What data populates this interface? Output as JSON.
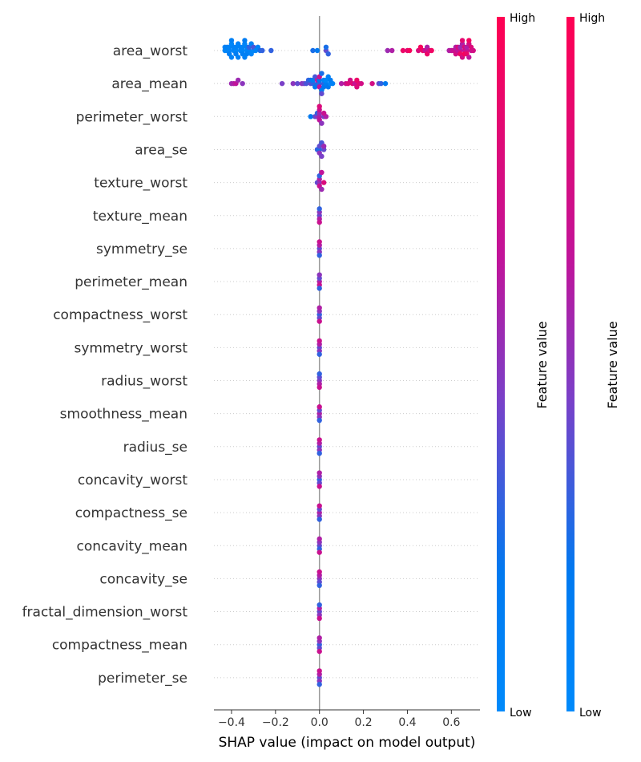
{
  "chart_data": {
    "type": "scatter",
    "subtype": "shap_beeswarm_summary",
    "title": "",
    "xlabel": "SHAP value (impact on model output)",
    "ylabel": "",
    "xlim": [
      -0.48,
      0.73
    ],
    "xticks": [
      -0.4,
      -0.2,
      0.0,
      0.2,
      0.4,
      0.6
    ],
    "xtick_labels": [
      "−0.4",
      "−0.2",
      "0.0",
      "0.2",
      "0.4",
      "0.6"
    ],
    "zero_line": 0.0,
    "features": [
      "area_worst",
      "area_mean",
      "perimeter_worst",
      "area_se",
      "texture_worst",
      "texture_mean",
      "symmetry_se",
      "perimeter_mean",
      "compactness_worst",
      "symmetry_worst",
      "radius_worst",
      "smoothness_mean",
      "radius_se",
      "concavity_worst",
      "compactness_se",
      "concavity_mean",
      "concavity_se",
      "fractal_dimension_worst",
      "compactness_mean",
      "perimeter_se"
    ],
    "colormap": {
      "low": "#008afb",
      "high": "#ff0052"
    },
    "colorbars": [
      {
        "title": "Feature value",
        "high_label": "High",
        "low_label": "Low"
      },
      {
        "title": "Feature value",
        "high_label": "High",
        "low_label": "Low"
      }
    ],
    "points": [
      [
        [
          -0.43,
          0.05
        ],
        [
          -0.43,
          0.1
        ],
        [
          -0.42,
          0.08
        ],
        [
          -0.42,
          0.12
        ],
        [
          -0.41,
          0.06
        ],
        [
          -0.41,
          0.1
        ],
        [
          -0.41,
          0.15
        ],
        [
          -0.4,
          0.05
        ],
        [
          -0.4,
          0.08
        ],
        [
          -0.4,
          0.12
        ],
        [
          -0.39,
          0.06
        ],
        [
          -0.39,
          0.1
        ],
        [
          -0.38,
          0.05
        ],
        [
          -0.38,
          0.09
        ],
        [
          -0.38,
          0.14
        ],
        [
          -0.37,
          0.08
        ],
        [
          -0.37,
          0.12
        ],
        [
          -0.36,
          0.06
        ],
        [
          -0.36,
          0.1
        ],
        [
          -0.35,
          0.05
        ],
        [
          -0.35,
          0.08
        ],
        [
          -0.35,
          0.12
        ],
        [
          -0.34,
          0.06
        ],
        [
          -0.34,
          0.1
        ],
        [
          -0.34,
          0.15
        ],
        [
          -0.33,
          0.05
        ],
        [
          -0.33,
          0.09
        ],
        [
          -0.33,
          0.12
        ],
        [
          -0.32,
          0.08
        ],
        [
          -0.32,
          0.3
        ],
        [
          -0.31,
          0.06
        ],
        [
          -0.31,
          0.1
        ],
        [
          -0.3,
          0.05
        ],
        [
          -0.3,
          0.35
        ],
        [
          -0.29,
          0.08
        ],
        [
          -0.28,
          0.1
        ],
        [
          -0.27,
          0.25
        ],
        [
          -0.26,
          0.3
        ],
        [
          -0.22,
          0.3
        ],
        [
          -0.03,
          0.25
        ],
        [
          -0.01,
          0.2
        ],
        [
          0.03,
          0.4
        ],
        [
          0.03,
          0.25
        ],
        [
          0.04,
          0.3
        ],
        [
          0.31,
          0.55
        ],
        [
          0.33,
          0.6
        ],
        [
          0.38,
          0.9
        ],
        [
          0.4,
          0.85
        ],
        [
          0.41,
          0.95
        ],
        [
          0.45,
          0.8
        ],
        [
          0.46,
          0.95
        ],
        [
          0.47,
          0.9
        ],
        [
          0.48,
          0.7
        ],
        [
          0.49,
          0.6
        ],
        [
          0.49,
          0.9
        ],
        [
          0.5,
          0.75
        ],
        [
          0.51,
          0.92
        ],
        [
          0.59,
          0.6
        ],
        [
          0.6,
          0.65
        ],
        [
          0.61,
          0.7
        ],
        [
          0.62,
          0.6
        ],
        [
          0.62,
          0.75
        ],
        [
          0.63,
          0.65
        ],
        [
          0.63,
          0.8
        ],
        [
          0.64,
          0.7
        ],
        [
          0.64,
          0.55
        ],
        [
          0.64,
          0.9
        ],
        [
          0.65,
          0.6
        ],
        [
          0.65,
          0.75
        ],
        [
          0.65,
          0.85
        ],
        [
          0.66,
          0.65
        ],
        [
          0.66,
          0.8
        ],
        [
          0.66,
          0.95
        ],
        [
          0.67,
          0.7
        ],
        [
          0.67,
          0.6
        ],
        [
          0.67,
          0.88
        ],
        [
          0.68,
          0.75
        ],
        [
          0.68,
          0.65
        ],
        [
          0.68,
          0.92
        ],
        [
          0.69,
          0.7
        ],
        [
          0.69,
          0.8
        ],
        [
          0.7,
          0.75
        ]
      ],
      [
        [
          -0.4,
          0.55
        ],
        [
          -0.39,
          0.6
        ],
        [
          -0.38,
          0.65
        ],
        [
          -0.37,
          0.55
        ],
        [
          -0.35,
          0.5
        ],
        [
          -0.17,
          0.45
        ],
        [
          -0.12,
          0.5
        ],
        [
          -0.1,
          0.4
        ],
        [
          -0.08,
          0.5
        ],
        [
          -0.07,
          0.45
        ],
        [
          -0.06,
          0.35
        ],
        [
          -0.05,
          0.3
        ],
        [
          -0.04,
          0.4
        ],
        [
          -0.04,
          0.25
        ],
        [
          -0.03,
          0.3
        ],
        [
          -0.03,
          0.15
        ],
        [
          -0.02,
          0.2
        ],
        [
          -0.02,
          0.35
        ],
        [
          -0.01,
          0.25
        ],
        [
          -0.01,
          0.6
        ],
        [
          0.0,
          0.3
        ],
        [
          0.0,
          0.2
        ],
        [
          0.0,
          0.65
        ],
        [
          0.0,
          0.7
        ],
        [
          0.01,
          0.15
        ],
        [
          0.01,
          0.25
        ],
        [
          0.01,
          0.4
        ],
        [
          0.02,
          0.3
        ],
        [
          0.02,
          0.1
        ],
        [
          0.02,
          0.2
        ],
        [
          0.03,
          0.15
        ],
        [
          0.03,
          0.05
        ],
        [
          0.04,
          0.2
        ],
        [
          0.04,
          0.1
        ],
        [
          0.05,
          0.05
        ],
        [
          0.05,
          0.15
        ],
        [
          0.06,
          0.1
        ],
        [
          0.1,
          0.6
        ],
        [
          0.12,
          0.7
        ],
        [
          0.13,
          0.8
        ],
        [
          0.14,
          0.75
        ],
        [
          0.15,
          0.85
        ],
        [
          0.16,
          0.7
        ],
        [
          0.17,
          0.9
        ],
        [
          0.17,
          0.8
        ],
        [
          0.18,
          0.85
        ],
        [
          0.19,
          0.75
        ],
        [
          0.24,
          0.75
        ],
        [
          0.27,
          0.4
        ],
        [
          0.28,
          0.3
        ],
        [
          0.3,
          0.2
        ]
      ],
      [
        [
          -0.04,
          0.2
        ],
        [
          -0.02,
          0.4
        ],
        [
          -0.01,
          0.5
        ],
        [
          -0.01,
          0.3
        ],
        [
          0.0,
          0.6
        ],
        [
          0.0,
          0.55
        ],
        [
          0.0,
          0.65
        ],
        [
          0.0,
          0.7
        ],
        [
          0.01,
          0.5
        ],
        [
          0.02,
          0.45
        ],
        [
          0.03,
          0.6
        ],
        [
          0.02,
          0.7
        ],
        [
          0.0,
          0.8
        ]
      ],
      [
        [
          -0.01,
          0.3
        ],
        [
          0.0,
          0.25
        ],
        [
          0.0,
          0.4
        ],
        [
          0.0,
          0.5
        ],
        [
          0.01,
          0.35
        ],
        [
          0.01,
          0.45
        ],
        [
          0.02,
          0.4
        ],
        [
          0.02,
          0.55
        ]
      ],
      [
        [
          -0.01,
          0.4
        ],
        [
          0.0,
          0.5
        ],
        [
          0.0,
          0.6
        ],
        [
          0.0,
          0.7
        ],
        [
          0.0,
          0.3
        ],
        [
          0.01,
          0.55
        ],
        [
          0.01,
          0.65
        ],
        [
          0.02,
          0.8
        ]
      ],
      [
        [
          0.0,
          0.4
        ],
        [
          0.0,
          0.5
        ],
        [
          0.0,
          0.6
        ],
        [
          0.0,
          0.3
        ],
        [
          0.0,
          0.7
        ]
      ],
      [
        [
          0.0,
          0.4
        ],
        [
          0.0,
          0.6
        ],
        [
          0.0,
          0.5
        ],
        [
          0.0,
          0.7
        ],
        [
          0.0,
          0.3
        ]
      ],
      [
        [
          0.0,
          0.6
        ],
        [
          0.0,
          0.4
        ],
        [
          0.0,
          0.7
        ],
        [
          0.0,
          0.5
        ],
        [
          0.0,
          0.3
        ]
      ],
      [
        [
          0.0,
          0.3
        ],
        [
          0.0,
          0.5
        ],
        [
          0.0,
          0.4
        ],
        [
          0.0,
          0.6
        ],
        [
          0.0,
          0.7
        ]
      ],
      [
        [
          0.0,
          0.4
        ],
        [
          0.0,
          0.6
        ],
        [
          0.0,
          0.5
        ],
        [
          0.0,
          0.7
        ],
        [
          0.0,
          0.3
        ]
      ],
      [
        [
          0.0,
          0.5
        ],
        [
          0.0,
          0.4
        ],
        [
          0.0,
          0.6
        ],
        [
          0.0,
          0.3
        ],
        [
          0.0,
          0.7
        ]
      ],
      [
        [
          0.0,
          0.6
        ],
        [
          0.0,
          0.4
        ],
        [
          0.0,
          0.5
        ],
        [
          0.0,
          0.7
        ],
        [
          0.0,
          0.3
        ]
      ],
      [
        [
          0.0,
          0.4
        ],
        [
          0.0,
          0.6
        ],
        [
          0.0,
          0.5
        ],
        [
          0.0,
          0.7
        ],
        [
          0.0,
          0.3
        ]
      ],
      [
        [
          0.0,
          0.3
        ],
        [
          0.0,
          0.5
        ],
        [
          0.0,
          0.4
        ],
        [
          0.0,
          0.6
        ],
        [
          0.0,
          0.7
        ]
      ],
      [
        [
          0.0,
          0.6
        ],
        [
          0.0,
          0.4
        ],
        [
          0.0,
          0.5
        ],
        [
          0.0,
          0.7
        ],
        [
          0.0,
          0.3
        ]
      ],
      [
        [
          0.0,
          0.4
        ],
        [
          0.0,
          0.5
        ],
        [
          0.0,
          0.3
        ],
        [
          0.0,
          0.6
        ],
        [
          0.0,
          0.7
        ]
      ],
      [
        [
          0.0,
          0.5
        ],
        [
          0.0,
          0.6
        ],
        [
          0.0,
          0.4
        ],
        [
          0.0,
          0.7
        ],
        [
          0.0,
          0.3
        ]
      ],
      [
        [
          0.0,
          0.4
        ],
        [
          0.0,
          0.6
        ],
        [
          0.0,
          0.5
        ],
        [
          0.0,
          0.3
        ],
        [
          0.0,
          0.7
        ]
      ],
      [
        [
          0.0,
          0.3
        ],
        [
          0.0,
          0.5
        ],
        [
          0.0,
          0.4
        ],
        [
          0.0,
          0.6
        ],
        [
          0.0,
          0.7
        ]
      ],
      [
        [
          0.0,
          0.4
        ],
        [
          0.0,
          0.6
        ],
        [
          0.0,
          0.5
        ],
        [
          0.0,
          0.7
        ],
        [
          0.0,
          0.3
        ]
      ]
    ]
  }
}
